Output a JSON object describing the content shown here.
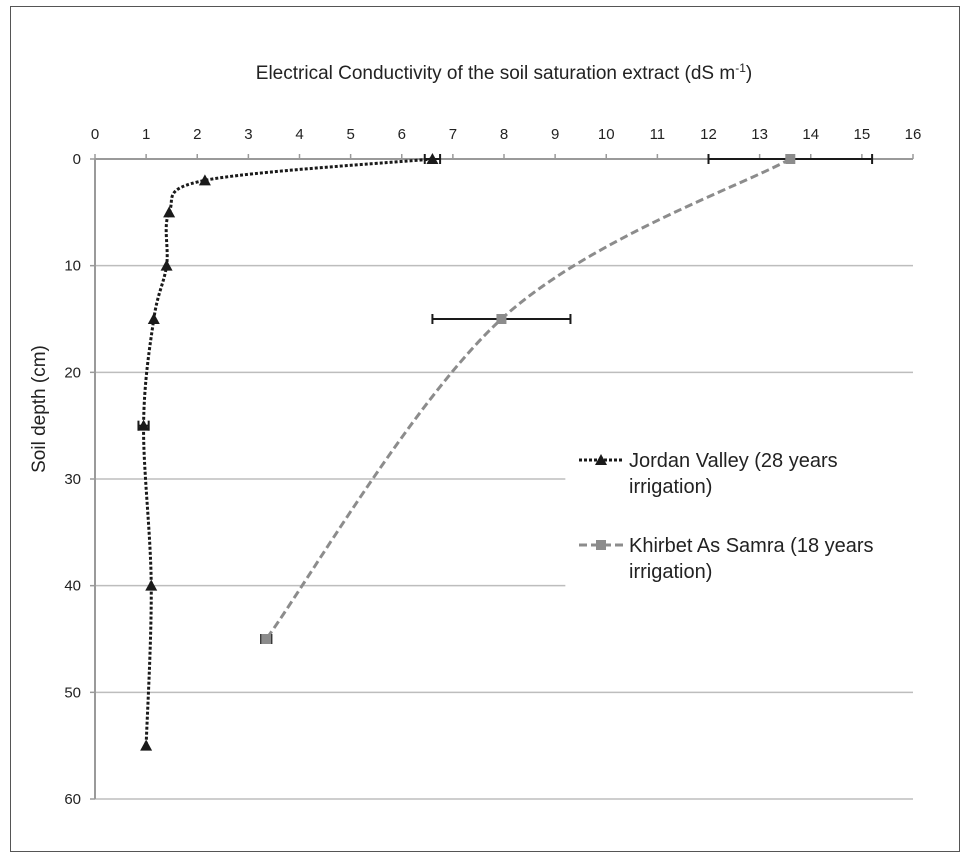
{
  "chart_data": {
    "type": "line",
    "title": "Electrical Conductivity of the soil saturation extract (dS m",
    "title_sup": "-1",
    "title_close": ")",
    "ylabel": "Soil depth (cm)",
    "xlim": [
      0,
      16
    ],
    "ylim": [
      0,
      60
    ],
    "x_axis_position": "top",
    "y_inverted": true,
    "x_ticks": [
      0,
      1,
      2,
      3,
      4,
      5,
      6,
      7,
      8,
      9,
      10,
      11,
      12,
      13,
      14,
      15,
      16
    ],
    "y_ticks": [
      0,
      10,
      20,
      30,
      40,
      50,
      60
    ],
    "grid": "horizontal",
    "legend_position": "right",
    "series": [
      {
        "name": "Jordan Valley (28 years",
        "name_line2": "irrigation)",
        "marker": "triangle",
        "color": "#1a1a1a",
        "line_style": "dotted",
        "x": [
          6.6,
          2.15,
          1.45,
          1.4,
          1.15,
          0.95,
          1.1,
          1.0
        ],
        "y": [
          0,
          2,
          5,
          10,
          15,
          25,
          40,
          55
        ],
        "error_x": [
          0.15,
          0,
          0,
          0,
          0,
          0.1,
          0,
          0
        ]
      },
      {
        "name": "Khirbet As Samra (18 years",
        "name_line2": "irrigation)",
        "marker": "square",
        "color": "#8c8c8c",
        "line_style": "dashed",
        "x": [
          13.6,
          7.95,
          3.35
        ],
        "y": [
          0,
          15,
          45
        ],
        "error_x": [
          1.6,
          1.35,
          0.1
        ]
      }
    ]
  }
}
